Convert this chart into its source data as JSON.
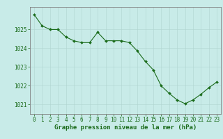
{
  "x": [
    0,
    1,
    2,
    3,
    4,
    5,
    6,
    7,
    8,
    9,
    10,
    11,
    12,
    13,
    14,
    15,
    16,
    17,
    18,
    19,
    20,
    21,
    22,
    23
  ],
  "y": [
    1025.8,
    1025.2,
    1025.0,
    1025.0,
    1024.6,
    1024.4,
    1024.3,
    1024.3,
    1024.85,
    1024.4,
    1024.4,
    1024.4,
    1024.3,
    1023.85,
    1023.3,
    1022.85,
    1022.0,
    1021.6,
    1021.25,
    1021.05,
    1021.25,
    1021.55,
    1021.9,
    1022.2
  ],
  "line_color": "#1a6b1a",
  "marker_color": "#1a6b1a",
  "bg_color": "#c8ebe8",
  "grid_color": "#b0d4d0",
  "axis_label": "Graphe pression niveau de la mer (hPa)",
  "ylim": [
    1020.5,
    1026.2
  ],
  "yticks": [
    1021,
    1022,
    1023,
    1024,
    1025
  ],
  "xticks": [
    0,
    1,
    2,
    3,
    4,
    5,
    6,
    7,
    8,
    9,
    10,
    11,
    12,
    13,
    14,
    15,
    16,
    17,
    18,
    19,
    20,
    21,
    22,
    23
  ],
  "border_color": "#808080",
  "tick_fontsize": 5.5,
  "xlabel_fontsize": 6.5
}
